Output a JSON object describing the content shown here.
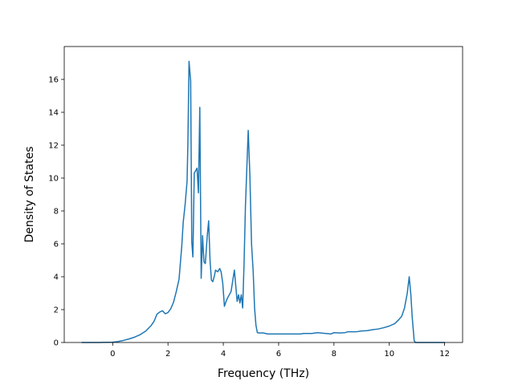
{
  "chart_data": {
    "type": "line",
    "title": "",
    "xlabel": "Frequency (THz)",
    "ylabel": "Density of States",
    "xlim": [
      -1.75,
      12.65
    ],
    "ylim": [
      0,
      18.0
    ],
    "x_ticks": [
      0,
      2,
      4,
      6,
      8,
      10,
      12
    ],
    "y_ticks": [
      0,
      2,
      4,
      6,
      8,
      10,
      12,
      14,
      16
    ],
    "grid": false,
    "legend": "none",
    "series": [
      {
        "color": "#1f77b4",
        "x": [
          -1.11,
          -0.5,
          0.0,
          0.2,
          0.4,
          0.6,
          0.8,
          1.0,
          1.2,
          1.4,
          1.5,
          1.6,
          1.7,
          1.8,
          1.9,
          2.0,
          2.1,
          2.2,
          2.3,
          2.4,
          2.5,
          2.55,
          2.62,
          2.69,
          2.72,
          2.76,
          2.82,
          2.86,
          2.9,
          2.95,
          3.05,
          3.1,
          3.15,
          3.2,
          3.25,
          3.3,
          3.35,
          3.42,
          3.47,
          3.52,
          3.57,
          3.62,
          3.67,
          3.72,
          3.8,
          3.87,
          3.92,
          3.98,
          4.04,
          4.1,
          4.15,
          4.2,
          4.28,
          4.4,
          4.5,
          4.55,
          4.6,
          4.65,
          4.7,
          4.75,
          4.8,
          4.9,
          4.96,
          5.02,
          5.08,
          5.13,
          5.18,
          5.23,
          5.3,
          5.45,
          5.6,
          5.8,
          6.2,
          6.8,
          6.9,
          7.2,
          7.4,
          7.7,
          7.9,
          8.0,
          8.2,
          8.4,
          8.5,
          8.8,
          9.0,
          9.2,
          9.4,
          9.6,
          9.8,
          10.0,
          10.2,
          10.35,
          10.45,
          10.55,
          10.65,
          10.72,
          10.78,
          10.83,
          10.88,
          10.9,
          10.95,
          11.5,
          12.0
        ],
        "values": [
          0.0,
          0.0,
          0.02,
          0.06,
          0.13,
          0.22,
          0.33,
          0.48,
          0.7,
          1.05,
          1.3,
          1.72,
          1.85,
          1.93,
          1.75,
          1.82,
          2.05,
          2.45,
          3.1,
          3.85,
          5.9,
          7.3,
          8.4,
          9.8,
          12.2,
          17.1,
          15.9,
          6.1,
          5.2,
          10.3,
          10.6,
          9.1,
          14.3,
          3.9,
          6.5,
          4.9,
          4.8,
          6.5,
          7.4,
          5.0,
          3.8,
          3.7,
          4.0,
          4.4,
          4.3,
          4.5,
          4.3,
          3.6,
          2.2,
          2.5,
          2.7,
          2.85,
          3.1,
          4.4,
          2.5,
          2.9,
          2.4,
          2.9,
          2.1,
          4.8,
          8.3,
          12.9,
          10.2,
          6.0,
          4.3,
          2.1,
          1.05,
          0.6,
          0.58,
          0.58,
          0.52,
          0.52,
          0.52,
          0.52,
          0.55,
          0.55,
          0.6,
          0.55,
          0.52,
          0.6,
          0.58,
          0.6,
          0.65,
          0.65,
          0.7,
          0.72,
          0.78,
          0.82,
          0.9,
          1.0,
          1.15,
          1.4,
          1.6,
          2.1,
          3.0,
          4.0,
          2.9,
          1.5,
          0.52,
          0.1,
          0.0,
          0.0,
          0.0
        ]
      }
    ]
  }
}
